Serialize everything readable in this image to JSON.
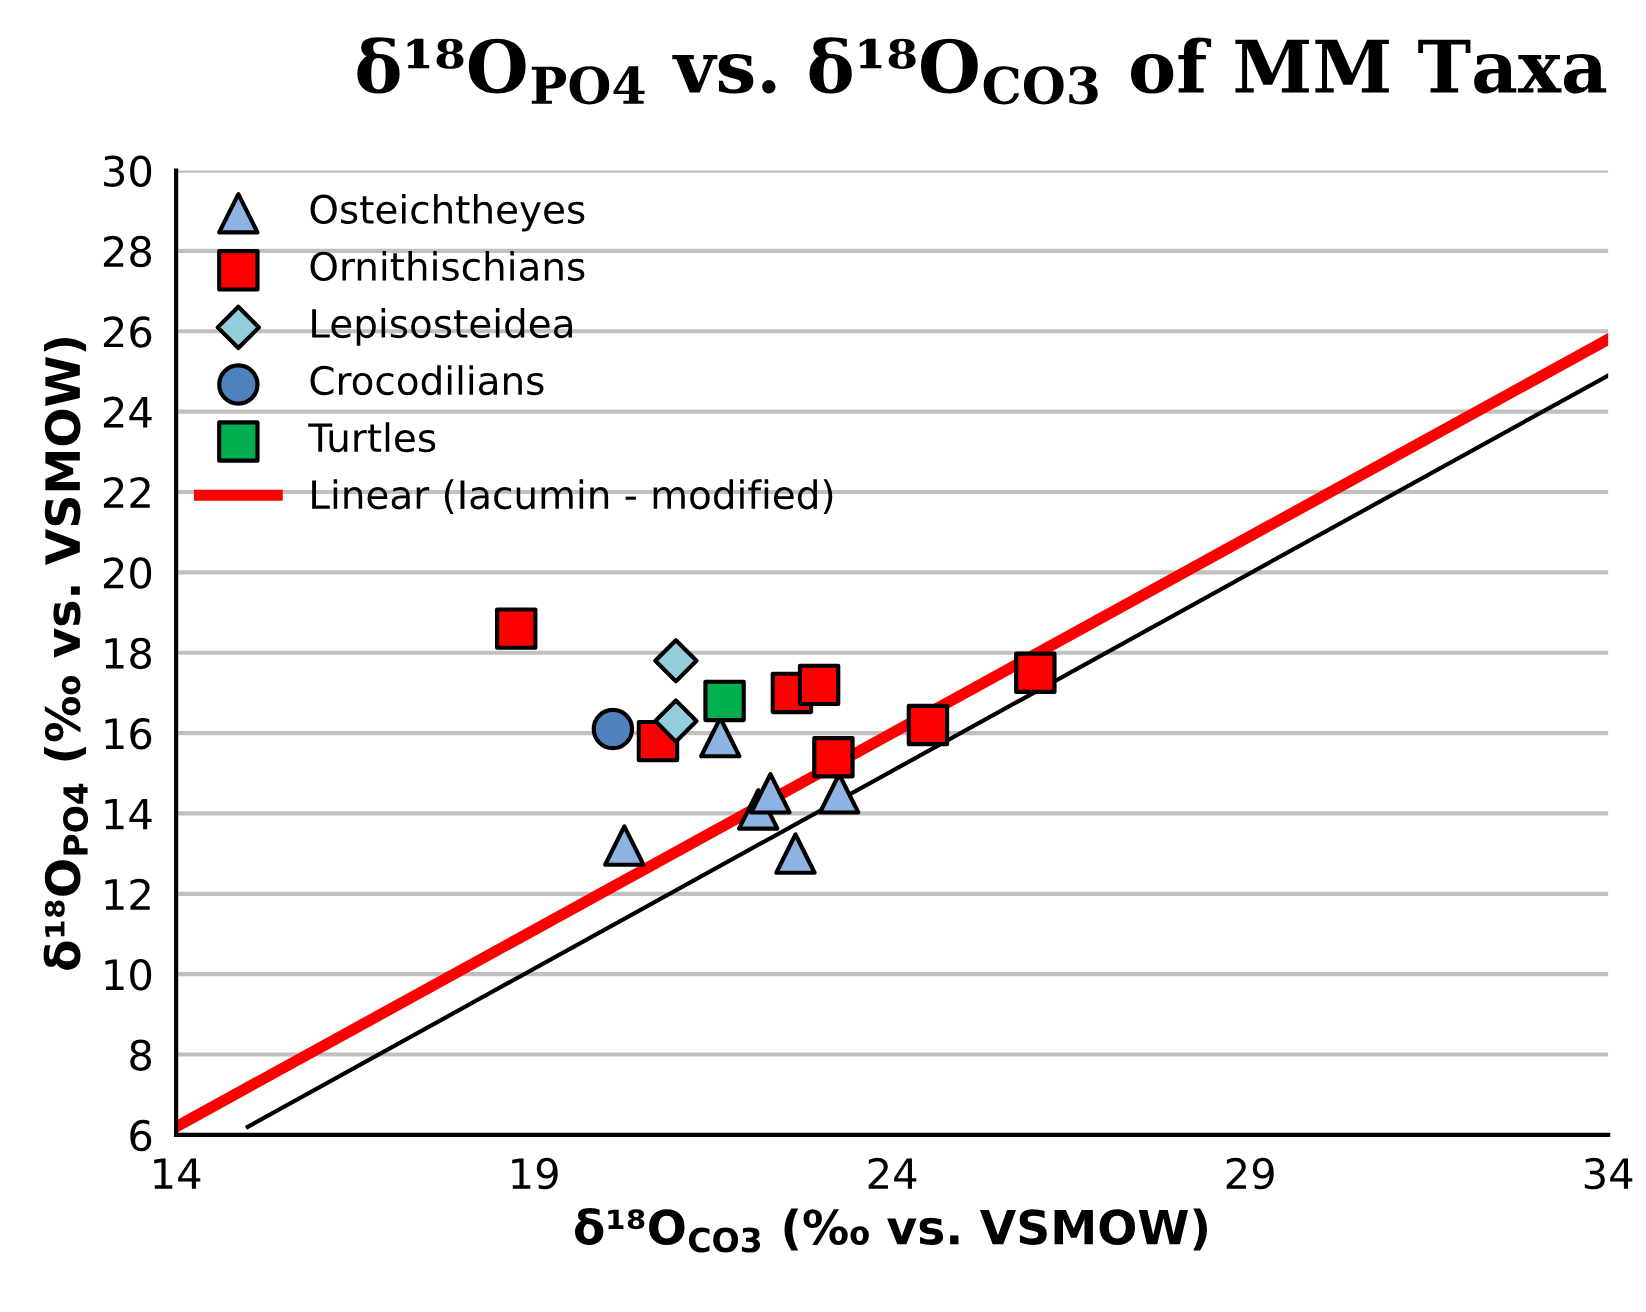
{
  "chart_data": {
    "type": "scatter",
    "title": "δ¹⁸O$_{PO4}$ vs. δ¹⁸O$_{CO3}$ of MM Taxa",
    "xlabel": "δ¹⁸O$_{CO3}$ (‰ vs. VSMOW)",
    "ylabel": "δ¹⁸O$_{PO4}$ (‰ vs. VSMOW)",
    "xlim": [
      14,
      34
    ],
    "xticks": [
      14,
      19,
      24,
      29,
      34
    ],
    "ylim": [
      6,
      30
    ],
    "yticks": [
      6,
      8,
      10,
      12,
      14,
      16,
      18,
      20,
      22,
      24,
      26,
      28,
      30
    ],
    "grid": "y",
    "legend": "top left",
    "series": [
      {
        "name": "Osteichtheyes",
        "color": "#8db3e2",
        "marker": "triangle",
        "x": [
          20.26,
          21.6,
          22.13,
          22.3,
          22.65,
          23.26
        ],
        "values": [
          13.2,
          15.9,
          14.1,
          14.5,
          13.0,
          14.5
        ]
      },
      {
        "name": "Ornithischians",
        "color": "#ff0000",
        "marker": "square",
        "x": [
          18.75,
          20.73,
          22.6,
          22.98,
          23.18,
          24.5,
          26.0
        ],
        "values": [
          18.6,
          15.8,
          17.0,
          17.2,
          15.4,
          16.2,
          17.5
        ]
      },
      {
        "name": "Lepisosteidea",
        "color": "#92cddc",
        "marker": "diamond",
        "x": [
          20.98,
          20.98
        ],
        "values": [
          17.8,
          16.3
        ]
      },
      {
        "name": "Crocodilians",
        "color": "#4f81bd",
        "marker": "circle",
        "x": [
          20.1
        ],
        "values": [
          16.1
        ]
      },
      {
        "name": "Turtles",
        "color": "#00b050",
        "marker": "square",
        "x": [
          21.66
        ],
        "values": [
          16.8
        ]
      },
      {
        "name": "Linear (Iacumin - modified)",
        "type": "line",
        "color": "#ff0000",
        "marker": "none",
        "x": [
          14,
          34
        ],
        "values": [
          6.2,
          25.8
        ]
      },
      {
        "type": "line",
        "color": "#000000",
        "marker": "none",
        "x": [
          15.0,
          34
        ],
        "values": [
          6.2,
          24.9
        ]
      }
    ]
  }
}
